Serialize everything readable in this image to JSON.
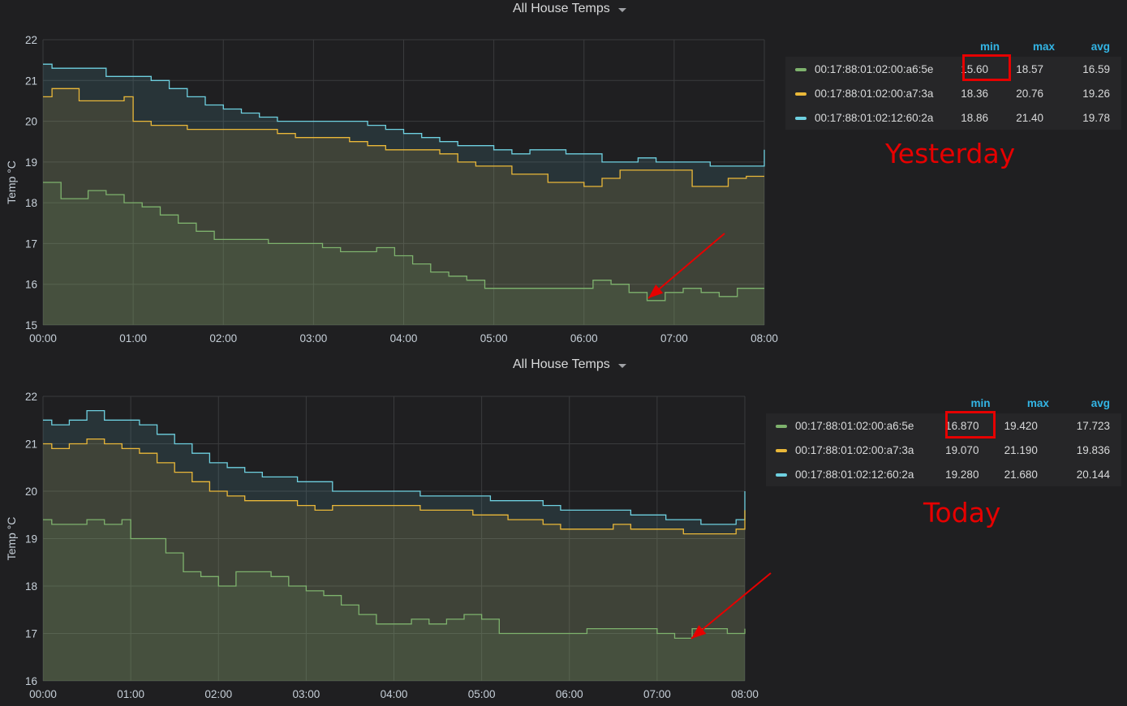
{
  "panels": [
    {
      "title": "All House Temps",
      "annotation": "Yesterday",
      "legend_headers": [
        "min",
        "max",
        "avg"
      ],
      "legend_rows": [
        {
          "name": "00:17:88:01:02:00:a6:5e",
          "color": "#7eb26d",
          "min": "15.60",
          "max": "18.57",
          "avg": "16.59"
        },
        {
          "name": "00:17:88:01:02:00:a7:3a",
          "color": "#eab839",
          "min": "18.36",
          "max": "20.76",
          "avg": "19.26"
        },
        {
          "name": "00:17:88:01:02:12:60:2a",
          "color": "#6ed0e0",
          "min": "18.86",
          "max": "21.40",
          "avg": "19.78"
        }
      ]
    },
    {
      "title": "All House Temps",
      "annotation": "Today",
      "legend_headers": [
        "min",
        "max",
        "avg"
      ],
      "legend_rows": [
        {
          "name": "00:17:88:01:02:00:a6:5e",
          "color": "#7eb26d",
          "min": "16.870",
          "max": "19.420",
          "avg": "17.723"
        },
        {
          "name": "00:17:88:01:02:00:a7:3a",
          "color": "#eab839",
          "min": "19.070",
          "max": "21.190",
          "avg": "19.836"
        },
        {
          "name": "00:17:88:01:02:12:60:2a",
          "color": "#6ed0e0",
          "min": "19.280",
          "max": "21.680",
          "avg": "20.144"
        }
      ]
    }
  ],
  "chart_data": [
    {
      "type": "line",
      "title": "All House Temps",
      "xlabel": "",
      "ylabel": "Temp °C",
      "x_ticks": [
        "00:00",
        "01:00",
        "02:00",
        "03:00",
        "04:00",
        "05:00",
        "06:00",
        "07:00",
        "08:00"
      ],
      "xlim": [
        0,
        8
      ],
      "ylim": [
        15,
        22
      ],
      "y_ticks": [
        15,
        16,
        17,
        18,
        19,
        20,
        21,
        22
      ],
      "grid": true,
      "legend": "right",
      "series": [
        {
          "name": "00:17:88:01:02:12:60:2a",
          "color": "#6ed0e0",
          "x": [
            0,
            0.1,
            0.4,
            0.7,
            1.0,
            1.2,
            1.4,
            1.6,
            1.8,
            2.0,
            2.2,
            2.4,
            2.6,
            2.8,
            3.0,
            3.2,
            3.4,
            3.6,
            3.8,
            4.0,
            4.2,
            4.4,
            4.6,
            4.8,
            5.0,
            5.2,
            5.4,
            5.6,
            5.8,
            6.0,
            6.2,
            6.4,
            6.6,
            6.8,
            7.0,
            7.2,
            7.4,
            7.6,
            7.8,
            8.0
          ],
          "y": [
            21.4,
            21.3,
            21.3,
            21.1,
            21.1,
            21.0,
            20.8,
            20.6,
            20.4,
            20.3,
            20.2,
            20.1,
            20.0,
            20.0,
            20.0,
            20.0,
            20.0,
            19.9,
            19.8,
            19.7,
            19.6,
            19.5,
            19.4,
            19.4,
            19.3,
            19.2,
            19.3,
            19.3,
            19.2,
            19.2,
            19.0,
            19.0,
            19.1,
            19.0,
            19.0,
            19.0,
            18.9,
            18.9,
            18.9,
            19.3
          ]
        },
        {
          "name": "00:17:88:01:02:00:a7:3a",
          "color": "#eab839",
          "x": [
            0,
            0.1,
            0.4,
            0.7,
            0.9,
            1.0,
            1.2,
            1.4,
            1.6,
            1.8,
            2.0,
            2.2,
            2.4,
            2.6,
            2.8,
            3.0,
            3.2,
            3.4,
            3.6,
            3.8,
            4.0,
            4.2,
            4.4,
            4.6,
            4.8,
            5.0,
            5.2,
            5.4,
            5.6,
            5.8,
            6.0,
            6.2,
            6.4,
            6.6,
            6.8,
            7.0,
            7.2,
            7.4,
            7.6,
            7.8,
            8.0
          ],
          "y": [
            20.6,
            20.8,
            20.5,
            20.5,
            20.6,
            20.0,
            19.9,
            19.9,
            19.8,
            19.8,
            19.8,
            19.8,
            19.8,
            19.7,
            19.6,
            19.6,
            19.6,
            19.5,
            19.4,
            19.3,
            19.3,
            19.3,
            19.2,
            19.0,
            18.9,
            18.9,
            18.7,
            18.7,
            18.5,
            18.5,
            18.4,
            18.6,
            18.8,
            18.8,
            18.8,
            18.8,
            18.4,
            18.4,
            18.6,
            18.65,
            18.65
          ]
        },
        {
          "name": "00:17:88:01:02:00:a6:5e",
          "color": "#7eb26d",
          "x": [
            0,
            0.1,
            0.2,
            0.5,
            0.7,
            0.9,
            1.1,
            1.3,
            1.5,
            1.7,
            1.9,
            2.1,
            2.3,
            2.5,
            2.7,
            2.9,
            3.1,
            3.3,
            3.5,
            3.7,
            3.9,
            4.1,
            4.3,
            4.5,
            4.7,
            4.9,
            5.1,
            5.3,
            5.5,
            5.7,
            5.9,
            6.1,
            6.3,
            6.5,
            6.7,
            6.9,
            7.1,
            7.3,
            7.5,
            7.7,
            8.0
          ],
          "y": [
            18.5,
            18.5,
            18.1,
            18.3,
            18.2,
            18.0,
            17.9,
            17.7,
            17.5,
            17.3,
            17.1,
            17.1,
            17.1,
            17.0,
            17.0,
            17.0,
            16.9,
            16.8,
            16.8,
            16.9,
            16.7,
            16.5,
            16.3,
            16.2,
            16.1,
            15.9,
            15.9,
            15.9,
            15.9,
            15.9,
            15.9,
            16.1,
            16.0,
            15.8,
            15.6,
            15.8,
            15.9,
            15.8,
            15.7,
            15.9,
            15.9
          ]
        }
      ]
    },
    {
      "type": "line",
      "title": "All House Temps",
      "xlabel": "",
      "ylabel": "Temp °C",
      "x_ticks": [
        "00:00",
        "01:00",
        "02:00",
        "03:00",
        "04:00",
        "05:00",
        "06:00",
        "07:00",
        "08:00"
      ],
      "xlim": [
        0,
        8
      ],
      "ylim": [
        16,
        22
      ],
      "y_ticks": [
        16,
        17,
        18,
        19,
        20,
        21,
        22
      ],
      "grid": true,
      "legend": "right",
      "series": [
        {
          "name": "00:17:88:01:02:12:60:2a",
          "color": "#6ed0e0",
          "x": [
            0,
            0.1,
            0.3,
            0.5,
            0.7,
            0.9,
            1.1,
            1.3,
            1.5,
            1.7,
            1.9,
            2.1,
            2.3,
            2.5,
            2.7,
            2.9,
            3.1,
            3.3,
            3.5,
            3.7,
            3.9,
            4.1,
            4.3,
            4.5,
            4.7,
            4.9,
            5.1,
            5.3,
            5.5,
            5.7,
            5.9,
            6.1,
            6.3,
            6.5,
            6.7,
            6.9,
            7.1,
            7.3,
            7.5,
            7.7,
            7.9,
            8.0
          ],
          "y": [
            21.5,
            21.4,
            21.5,
            21.7,
            21.5,
            21.5,
            21.4,
            21.2,
            21.0,
            20.8,
            20.6,
            20.5,
            20.4,
            20.3,
            20.3,
            20.2,
            20.2,
            20.0,
            20.0,
            20.0,
            20.0,
            20.0,
            19.9,
            19.9,
            19.9,
            19.9,
            19.8,
            19.8,
            19.8,
            19.7,
            19.6,
            19.6,
            19.6,
            19.6,
            19.5,
            19.5,
            19.4,
            19.4,
            19.3,
            19.3,
            19.4,
            20.0
          ]
        },
        {
          "name": "00:17:88:01:02:00:a7:3a",
          "color": "#eab839",
          "x": [
            0,
            0.1,
            0.3,
            0.5,
            0.7,
            0.9,
            1.1,
            1.3,
            1.5,
            1.7,
            1.9,
            2.1,
            2.3,
            2.5,
            2.7,
            2.9,
            3.1,
            3.3,
            3.5,
            3.7,
            3.9,
            4.1,
            4.3,
            4.5,
            4.7,
            4.9,
            5.1,
            5.3,
            5.5,
            5.7,
            5.9,
            6.1,
            6.3,
            6.5,
            6.7,
            6.9,
            7.1,
            7.3,
            7.5,
            7.7,
            7.9,
            8.0
          ],
          "y": [
            21.0,
            20.9,
            21.0,
            21.1,
            21.0,
            20.9,
            20.8,
            20.6,
            20.4,
            20.2,
            20.0,
            19.9,
            19.8,
            19.8,
            19.8,
            19.7,
            19.6,
            19.7,
            19.7,
            19.7,
            19.7,
            19.7,
            19.6,
            19.6,
            19.6,
            19.5,
            19.5,
            19.4,
            19.4,
            19.3,
            19.2,
            19.2,
            19.2,
            19.3,
            19.2,
            19.2,
            19.2,
            19.1,
            19.1,
            19.1,
            19.2,
            19.6
          ]
        },
        {
          "name": "00:17:88:01:02:00:a6:5e",
          "color": "#7eb26d",
          "x": [
            0,
            0.1,
            0.3,
            0.5,
            0.7,
            0.9,
            1.0,
            1.2,
            1.4,
            1.6,
            1.8,
            2.0,
            2.2,
            2.4,
            2.6,
            2.8,
            3.0,
            3.2,
            3.4,
            3.6,
            3.8,
            4.0,
            4.2,
            4.4,
            4.6,
            4.8,
            5.0,
            5.2,
            5.4,
            5.6,
            5.8,
            6.0,
            6.2,
            6.4,
            6.6,
            6.8,
            7.0,
            7.2,
            7.4,
            7.6,
            7.8,
            8.0
          ],
          "y": [
            19.4,
            19.3,
            19.3,
            19.4,
            19.3,
            19.4,
            19.0,
            19.0,
            18.7,
            18.3,
            18.2,
            18.0,
            18.3,
            18.3,
            18.2,
            18.0,
            17.9,
            17.8,
            17.6,
            17.4,
            17.2,
            17.2,
            17.3,
            17.2,
            17.3,
            17.4,
            17.3,
            17.0,
            17.0,
            17.0,
            17.0,
            17.0,
            17.1,
            17.1,
            17.1,
            17.1,
            17.0,
            16.9,
            17.1,
            17.1,
            17.0,
            17.1
          ]
        }
      ]
    }
  ]
}
